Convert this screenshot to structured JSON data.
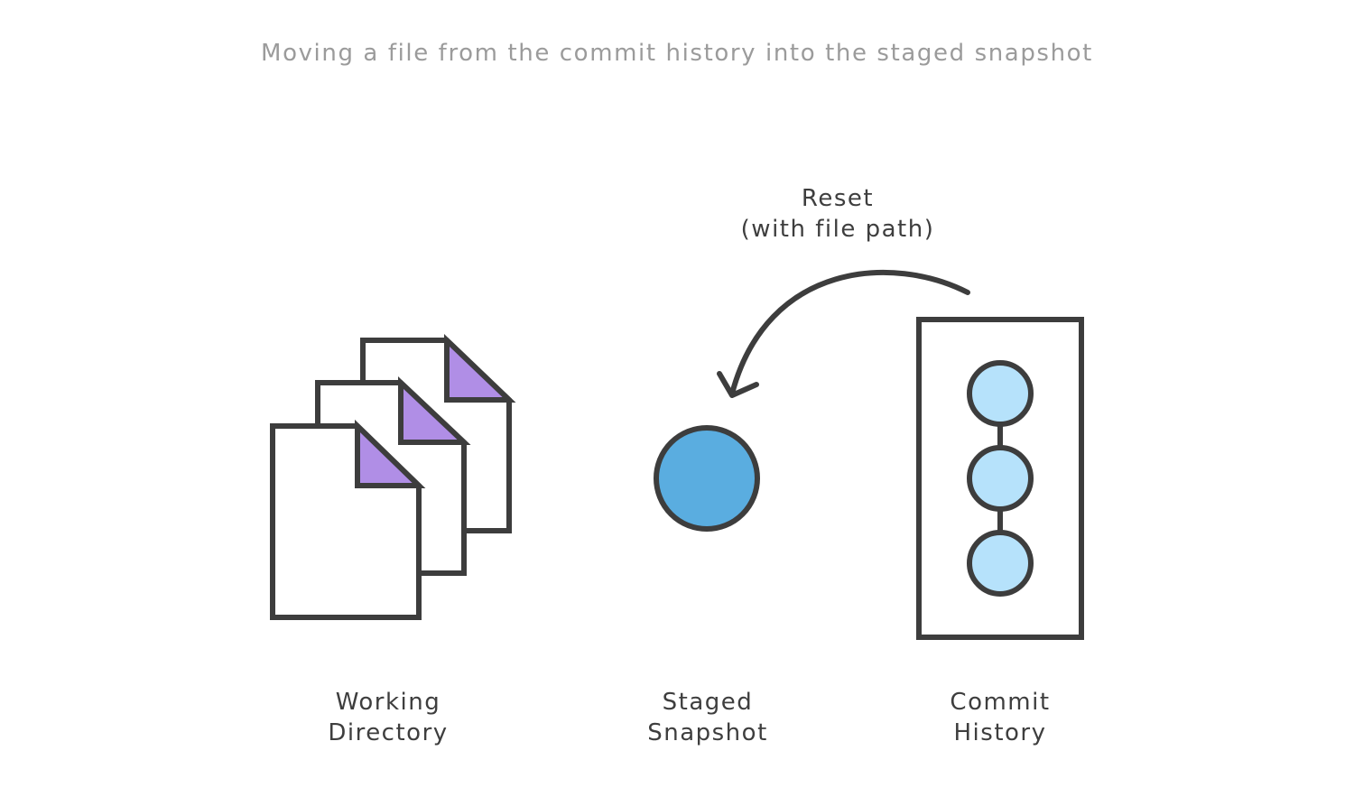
{
  "caption": "Moving a file from the commit history into the staged snapshot",
  "action": {
    "line1": "Reset",
    "line2": "(with file path)"
  },
  "areas": {
    "working_directory": {
      "line1": "Working",
      "line2": "Directory"
    },
    "staged_snapshot": {
      "line1": "Staged",
      "line2": "Snapshot"
    },
    "commit_history": {
      "line1": "Commit",
      "line2": "History"
    }
  },
  "colors": {
    "outline": "#3d3d3d",
    "file_corner": "#b08ee6",
    "staged_fill": "#5aade0",
    "commit_fill": "#b6e2fb",
    "caption_text": "#9b9b9b",
    "label_text": "#3e3e3e"
  }
}
